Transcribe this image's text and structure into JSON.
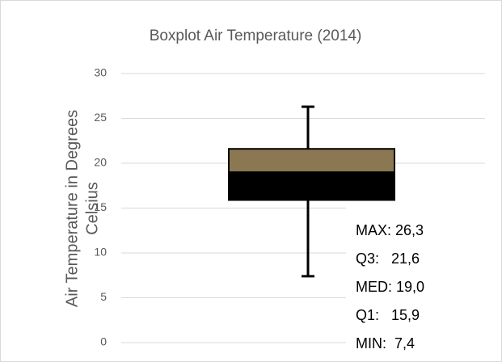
{
  "chart_data": {
    "type": "box",
    "title": "Boxplot Air Temperature (2014)",
    "ylabel": [
      "Air Temperature in Degrees",
      "Celsius"
    ],
    "box": {
      "min": 7.4,
      "q1": 15.9,
      "median": 19.0,
      "q3": 21.6,
      "max": 26.3
    },
    "upper_color": "#8b7853",
    "lower_color": "#000000",
    "ylim": [
      0,
      30
    ],
    "yticks": [
      0,
      5,
      10,
      15,
      20,
      25,
      30
    ],
    "grid": true,
    "annotations": [
      "MAX: 26,3",
      "Q3:   21,6",
      "MED: 19,0",
      "Q1:   15,9",
      "MIN:  7,4"
    ]
  }
}
